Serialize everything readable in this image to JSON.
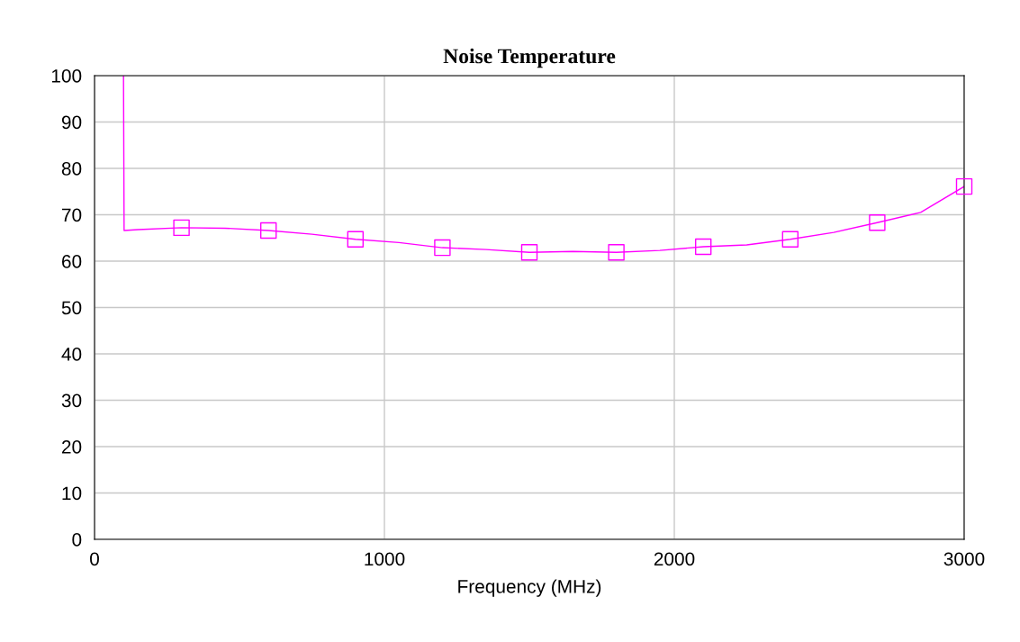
{
  "chart_data": {
    "type": "line",
    "title": "Noise Temperature",
    "xlabel": "Frequency (MHz)",
    "series": [
      {
        "color": "#ff00ff",
        "marker": "none",
        "x": [
          100,
          102,
          150,
          300,
          450,
          600,
          750,
          900,
          1050,
          1200,
          1350,
          1500,
          1650,
          1800,
          1950,
          2100,
          2250,
          2400,
          2550,
          2700,
          2850,
          3000
        ],
        "values": [
          100,
          66.6,
          66.8,
          67.2,
          67.1,
          66.6,
          65.8,
          64.7,
          64,
          62.9,
          62.5,
          61.9,
          62.1,
          61.9,
          62.3,
          63.1,
          63.5,
          64.7,
          66.2,
          68.3,
          70.5,
          76.1
        ]
      },
      {
        "type": "scatter",
        "color": "#ff00ff",
        "marker": "square",
        "x": [
          300,
          600,
          900,
          1200,
          1500,
          1800,
          2100,
          2400,
          2700,
          3000
        ],
        "values": [
          67.2,
          66.6,
          64.7,
          62.9,
          61.9,
          61.9,
          63.1,
          64.7,
          68.3,
          76.1
        ]
      }
    ],
    "xlim": [
      0,
      3000
    ],
    "xticks": [
      0,
      1000,
      2000,
      3000
    ],
    "ylim": [
      0,
      100
    ],
    "yticks": [
      0,
      10,
      20,
      30,
      40,
      50,
      60,
      70,
      80,
      90,
      100
    ],
    "grid": true,
    "legend": false
  }
}
